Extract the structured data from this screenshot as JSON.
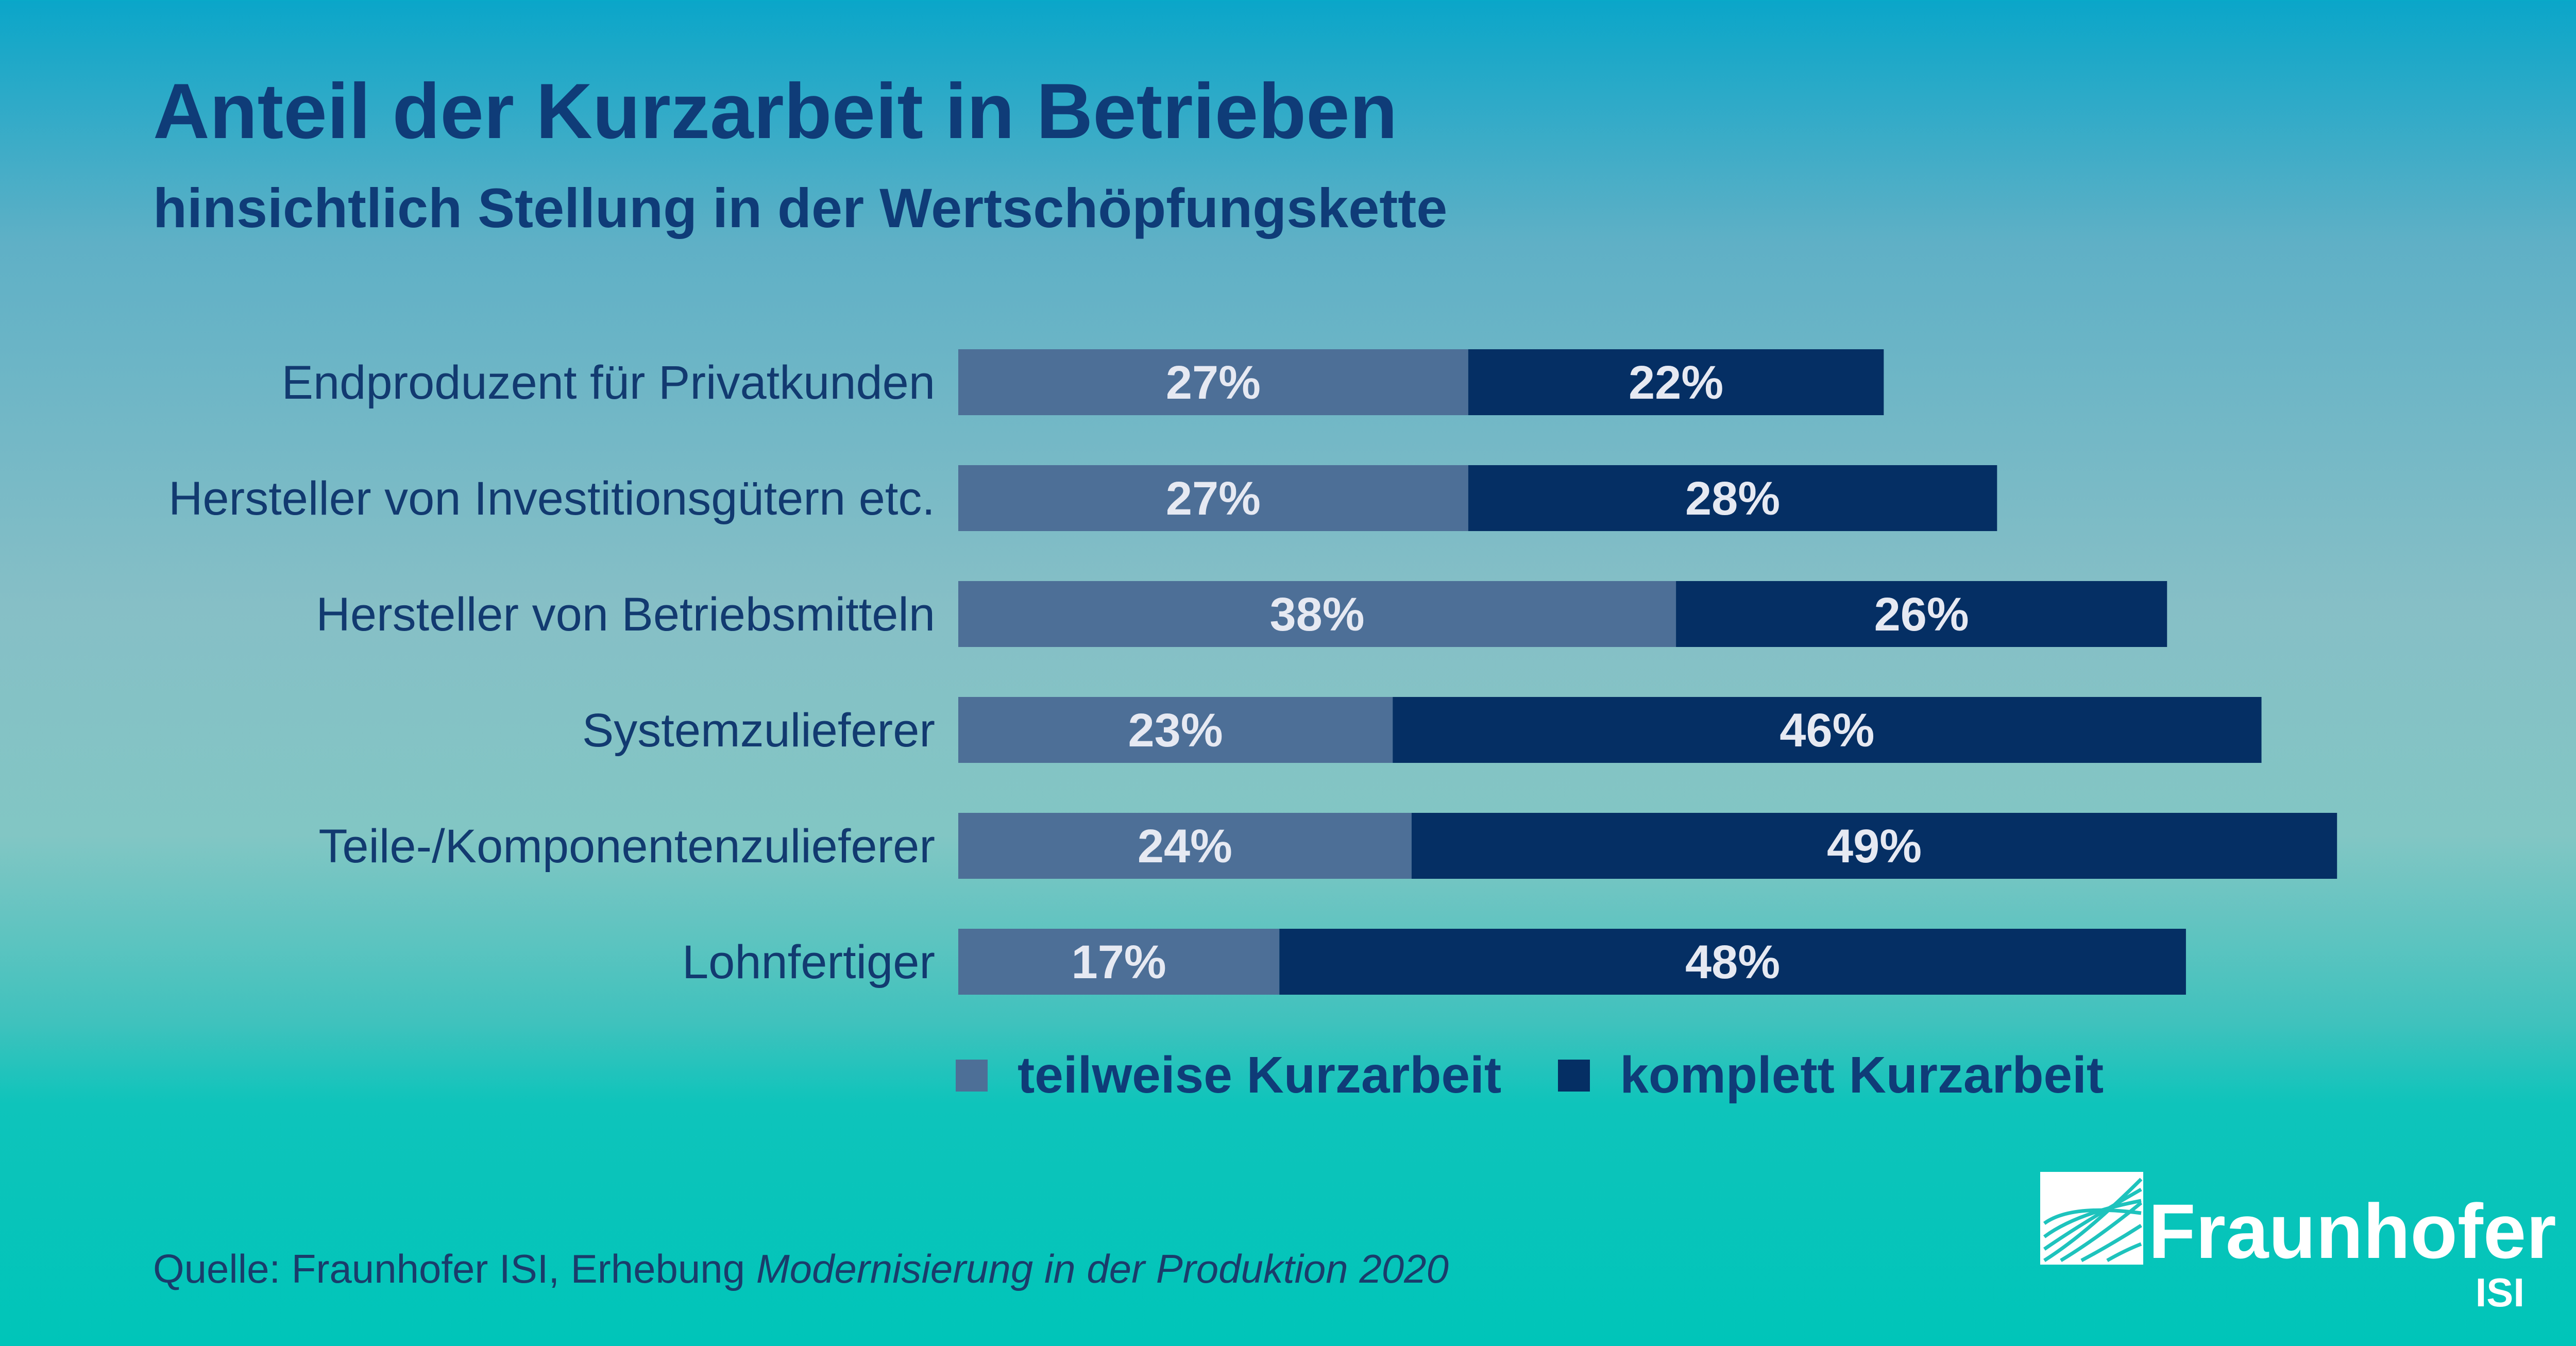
{
  "title": "Anteil der Kurzarbeit in Betrieben",
  "subtitle": "hinsichtlich Stellung in der Wertschöpfungskette",
  "source": {
    "prefix": "Quelle: Fraunhofer ISI, Erhebung ",
    "italic": "Modernisierung in der Produktion 2020"
  },
  "logo": {
    "name": "Fraunhofer",
    "sub": "ISI"
  },
  "colors": {
    "teilweise": "#4d6f97",
    "komplett": "#052f64",
    "text": "#0f3c78",
    "value_text": "#e6e9f2"
  },
  "chart_data": {
    "type": "bar",
    "orientation": "horizontal",
    "stacked": true,
    "categories": [
      "Endproduzent für Privatkunden",
      "Hersteller von Investitionsgütern etc.",
      "Hersteller von Betriebsmitteln",
      "Systemzulieferer",
      "Teile-/Komponentenzulieferer",
      "Lohnfertiger"
    ],
    "series": [
      {
        "name": "teilweise Kurzarbeit",
        "values": [
          27,
          27,
          38,
          23,
          24,
          17
        ],
        "labels": [
          "27%",
          "27%",
          "38%",
          "23%",
          "24%",
          "17%"
        ]
      },
      {
        "name": "komplett Kurzarbeit",
        "values": [
          22,
          28,
          26,
          46,
          49,
          48
        ],
        "labels": [
          "22%",
          "28%",
          "26%",
          "46%",
          "49%",
          "48%"
        ]
      }
    ],
    "unit": "%",
    "legend_position": "bottom",
    "grid": false
  }
}
